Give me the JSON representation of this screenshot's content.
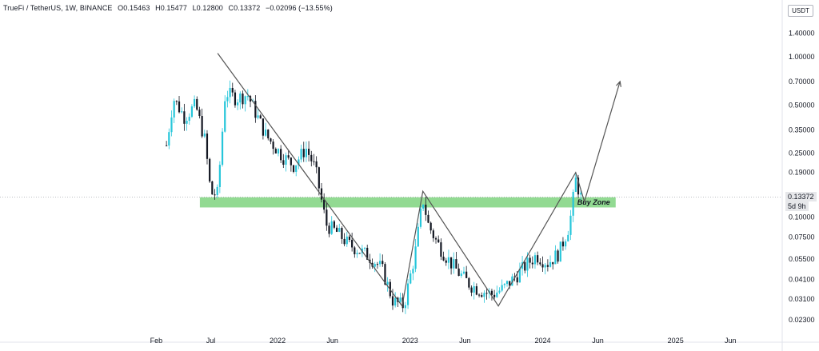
{
  "header": {
    "symbol": "TrueFi / TetherUS, 1W, BINANCE",
    "open": "O0.15463",
    "high": "H0.15477",
    "low": "L0.12800",
    "close": "C0.13372",
    "change": "−0.02096 (−13.55%)"
  },
  "currency": "USDT",
  "price_tag": {
    "value": "0.13372",
    "countdown": "5d 9h"
  },
  "colors": {
    "up": "#26c6da",
    "down": "#131722",
    "zone": "#7fd37f",
    "line": "#555555"
  },
  "chart_data": {
    "type": "candlestick",
    "title": "TrueFi / TetherUS, 1W, BINANCE",
    "y_scale": "log",
    "y_ticks": [
      1.4,
      1.0,
      0.7,
      0.5,
      0.35,
      0.25,
      0.19,
      0.1,
      0.075,
      0.055,
      0.041,
      0.031,
      0.023
    ],
    "y_tick_labels": [
      "1.40000",
      "1.00000",
      "0.70000",
      "0.50000",
      "0.35000",
      "0.25000",
      "0.19000",
      "0.10000",
      "0.07500",
      "0.05500",
      "0.04100",
      "0.03100",
      "0.02300"
    ],
    "x_ticks": [
      {
        "label": "Feb",
        "date": "2021-02-01"
      },
      {
        "label": "Jul",
        "date": "2021-07-01"
      },
      {
        "label": "2022",
        "date": "2022-01-01"
      },
      {
        "label": "Jun",
        "date": "2022-06-01"
      },
      {
        "label": "2023",
        "date": "2023-01-01"
      },
      {
        "label": "Jun",
        "date": "2023-06-01"
      },
      {
        "label": "2024",
        "date": "2024-01-01"
      },
      {
        "label": "Jun",
        "date": "2024-06-01"
      },
      {
        "label": "2025",
        "date": "2025-01-01"
      },
      {
        "label": "Jun",
        "date": "2025-06-01"
      }
    ],
    "x_range": [
      "2020-11-15",
      "2025-10-15"
    ],
    "y_range": [
      0.02,
      1.75
    ],
    "close_path": [
      [
        "2021-03-01",
        0.28
      ],
      [
        "2021-03-20",
        0.55
      ],
      [
        "2021-04-20",
        0.42
      ],
      [
        "2021-05-20",
        0.5
      ],
      [
        "2021-06-15",
        0.3
      ],
      [
        "2021-07-01",
        0.14
      ],
      [
        "2021-07-20",
        0.14
      ],
      [
        "2021-08-10",
        0.6
      ],
      [
        "2021-09-10",
        0.55
      ],
      [
        "2021-10-10",
        0.58
      ],
      [
        "2021-11-01",
        0.45
      ],
      [
        "2021-12-01",
        0.32
      ],
      [
        "2022-01-15",
        0.24
      ],
      [
        "2022-02-15",
        0.21
      ],
      [
        "2022-03-20",
        0.27
      ],
      [
        "2022-04-15",
        0.2
      ],
      [
        "2022-05-15",
        0.09
      ],
      [
        "2022-06-15",
        0.08
      ],
      [
        "2022-07-15",
        0.068
      ],
      [
        "2022-08-15",
        0.062
      ],
      [
        "2022-09-15",
        0.056
      ],
      [
        "2022-10-15",
        0.048
      ],
      [
        "2022-11-15",
        0.03
      ],
      [
        "2022-12-15",
        0.028
      ],
      [
        "2023-01-15",
        0.06
      ],
      [
        "2023-02-05",
        0.13
      ],
      [
        "2023-02-20",
        0.09
      ],
      [
        "2023-03-15",
        0.07
      ],
      [
        "2023-04-15",
        0.055
      ],
      [
        "2023-05-15",
        0.045
      ],
      [
        "2023-06-15",
        0.038
      ],
      [
        "2023-07-15",
        0.035
      ],
      [
        "2023-08-15",
        0.033
      ],
      [
        "2023-09-15",
        0.036
      ],
      [
        "2023-10-15",
        0.042
      ],
      [
        "2023-11-15",
        0.05
      ],
      [
        "2023-12-15",
        0.058
      ],
      [
        "2024-01-15",
        0.052
      ],
      [
        "2024-02-15",
        0.06
      ],
      [
        "2024-03-15",
        0.09
      ],
      [
        "2024-04-01",
        0.17
      ],
      [
        "2024-04-15",
        0.13372
      ]
    ],
    "buy_zone": {
      "label": "Buy Zone",
      "y_low": 0.115,
      "y_high": 0.133,
      "x_start": "2021-06-01",
      "x_end": "2024-07-20"
    },
    "trend_lines": [
      [
        [
          "2021-07-20",
          1.05
        ],
        [
          "2022-12-10",
          0.028
        ],
        [
          "2023-02-05",
          0.145
        ],
        [
          "2023-09-01",
          0.028
        ],
        [
          "2024-04-01",
          0.19
        ],
        [
          "2024-04-25",
          0.125
        ],
        [
          "2024-08-01",
          0.7
        ]
      ]
    ]
  }
}
